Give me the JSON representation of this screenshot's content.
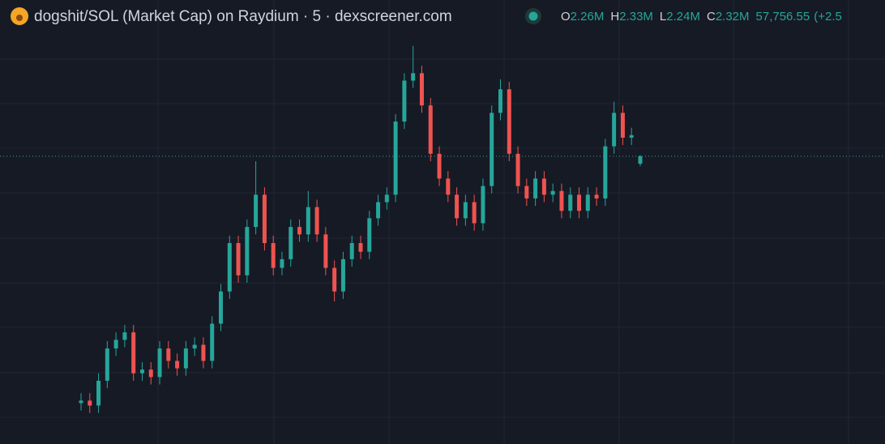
{
  "chart_data": {
    "type": "candlestick",
    "title": "dogshit/SOL (Market Cap) on Raydium · 5 · dexscreener.com",
    "ohlc_legend": [
      {
        "key": "O",
        "value": "2.26M"
      },
      {
        "key": "H",
        "value": "2.33M"
      },
      {
        "key": "L",
        "value": "2.24M"
      },
      {
        "key": "C",
        "value": "2.32M"
      }
    ],
    "change": "57,756.55",
    "change_pct": "(+2.5",
    "up_color": "#26a69a",
    "down_color": "#ef5350",
    "ylim": [
      0,
      3.58
    ],
    "open": [
      0.33,
      0.35,
      0.31,
      0.51,
      0.77,
      0.84,
      0.9,
      0.57,
      0.6,
      0.54,
      0.77,
      0.67,
      0.61,
      0.77,
      0.8,
      0.67,
      0.97,
      1.23,
      1.62,
      1.36,
      1.75,
      2.01,
      1.62,
      1.42,
      1.49,
      1.75,
      1.69,
      1.91,
      1.69,
      1.42,
      1.23,
      1.49,
      1.62,
      1.55,
      1.82,
      1.95,
      2.01,
      2.6,
      2.93,
      2.99,
      2.73,
      2.34,
      2.14,
      2.01,
      1.82,
      1.95,
      1.78,
      2.08,
      2.67,
      2.86,
      2.34,
      2.08,
      1.98,
      2.14,
      2.01,
      2.04,
      1.88,
      2.01,
      1.88,
      2.01,
      1.98,
      2.4,
      2.67,
      2.47,
      2.26
    ],
    "high": [
      0.41,
      0.41,
      0.57,
      0.83,
      0.9,
      0.96,
      0.96,
      0.66,
      0.66,
      0.83,
      0.83,
      0.73,
      0.83,
      0.86,
      0.86,
      1.03,
      1.29,
      1.68,
      1.68,
      1.81,
      2.28,
      2.07,
      1.68,
      1.55,
      1.81,
      1.81,
      2.04,
      1.97,
      1.75,
      1.48,
      1.55,
      1.68,
      1.68,
      1.88,
      2.01,
      2.07,
      2.66,
      2.99,
      3.21,
      3.05,
      2.79,
      2.4,
      2.2,
      2.07,
      2.01,
      2.01,
      2.14,
      2.73,
      2.94,
      2.92,
      2.4,
      2.14,
      2.2,
      2.2,
      2.1,
      2.1,
      2.07,
      2.07,
      2.07,
      2.07,
      2.46,
      2.76,
      2.73,
      2.55,
      2.33
    ],
    "low": [
      0.27,
      0.25,
      0.25,
      0.45,
      0.71,
      0.78,
      0.51,
      0.51,
      0.48,
      0.48,
      0.61,
      0.55,
      0.55,
      0.71,
      0.61,
      0.61,
      0.91,
      1.17,
      1.3,
      1.3,
      1.69,
      1.56,
      1.36,
      1.36,
      1.43,
      1.63,
      1.63,
      1.63,
      1.36,
      1.15,
      1.17,
      1.43,
      1.49,
      1.49,
      1.76,
      1.89,
      1.95,
      2.54,
      2.87,
      2.67,
      2.28,
      2.08,
      1.95,
      1.76,
      1.76,
      1.72,
      1.72,
      2.02,
      2.61,
      2.28,
      2.02,
      1.92,
      1.92,
      1.95,
      1.95,
      1.82,
      1.82,
      1.82,
      1.82,
      1.92,
      1.92,
      2.34,
      2.41,
      2.41,
      2.24
    ],
    "close": [
      0.35,
      0.31,
      0.51,
      0.77,
      0.84,
      0.9,
      0.57,
      0.6,
      0.54,
      0.77,
      0.67,
      0.61,
      0.77,
      0.8,
      0.67,
      0.97,
      1.23,
      1.62,
      1.36,
      1.75,
      2.01,
      1.62,
      1.42,
      1.49,
      1.75,
      1.69,
      1.91,
      1.69,
      1.42,
      1.23,
      1.49,
      1.62,
      1.55,
      1.82,
      1.95,
      2.01,
      2.6,
      2.93,
      2.99,
      2.73,
      2.34,
      2.14,
      2.01,
      1.82,
      1.95,
      1.78,
      2.08,
      2.67,
      2.86,
      2.34,
      2.08,
      1.98,
      2.14,
      2.01,
      2.04,
      1.88,
      2.01,
      1.88,
      2.01,
      1.98,
      2.4,
      2.67,
      2.47,
      2.49,
      2.32
    ]
  }
}
